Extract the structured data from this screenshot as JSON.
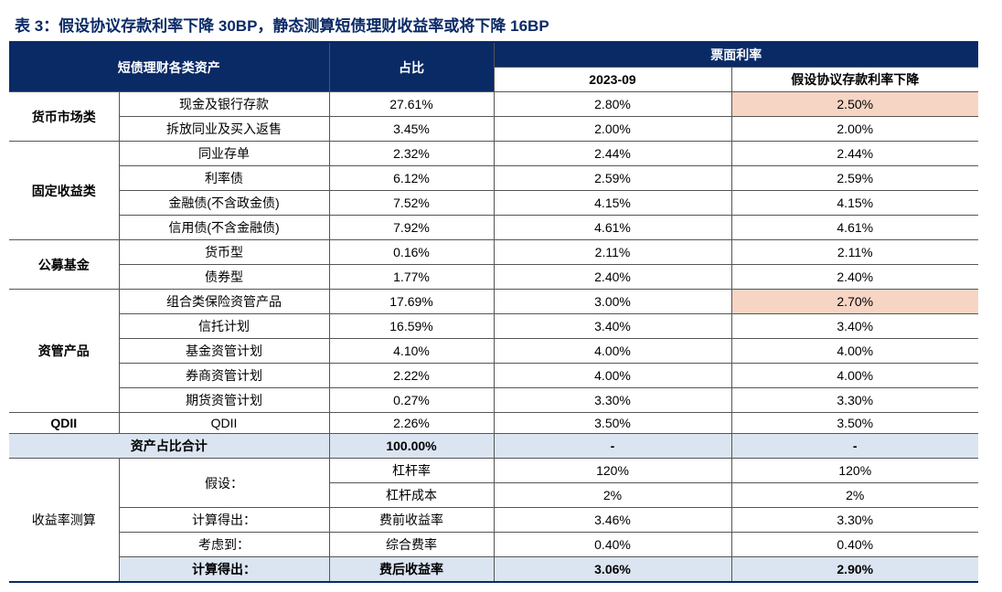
{
  "title": "表 3：假设协议存款利率下降 30BP，静态测算短债理财收益率或将下降 16BP",
  "headers": {
    "assets": "短债理财各类资产",
    "ratio": "占比",
    "coupon": "票面利率",
    "date": "2023-09",
    "scenario": "假设协议存款利率下降"
  },
  "colors": {
    "header_bg": "#0a2a66",
    "header_fg": "#ffffff",
    "highlight_bg": "#f7d5c4",
    "band_bg": "#dbe5f1",
    "title_color": "#0a2a66",
    "border_color": "#555555"
  },
  "groups": [
    {
      "name": "货币市场类",
      "rows": [
        {
          "asset": "现金及银行存款",
          "ratio": "27.61%",
          "v09": "2.80%",
          "vsc": "2.50%",
          "hl": true
        },
        {
          "asset": "拆放同业及买入返售",
          "ratio": "3.45%",
          "v09": "2.00%",
          "vsc": "2.00%"
        }
      ]
    },
    {
      "name": "固定收益类",
      "rows": [
        {
          "asset": "同业存单",
          "ratio": "2.32%",
          "v09": "2.44%",
          "vsc": "2.44%"
        },
        {
          "asset": "利率债",
          "ratio": "6.12%",
          "v09": "2.59%",
          "vsc": "2.59%"
        },
        {
          "asset": "金融债(不含政金债)",
          "ratio": "7.52%",
          "v09": "4.15%",
          "vsc": "4.15%"
        },
        {
          "asset": "信用债(不含金融债)",
          "ratio": "7.92%",
          "v09": "4.61%",
          "vsc": "4.61%"
        }
      ]
    },
    {
      "name": "公募基金",
      "rows": [
        {
          "asset": "货币型",
          "ratio": "0.16%",
          "v09": "2.11%",
          "vsc": "2.11%"
        },
        {
          "asset": "债券型",
          "ratio": "1.77%",
          "v09": "2.40%",
          "vsc": "2.40%"
        }
      ]
    },
    {
      "name": "资管产品",
      "rows": [
        {
          "asset": "组合类保险资管产品",
          "ratio": "17.69%",
          "v09": "3.00%",
          "vsc": "2.70%",
          "hl": true
        },
        {
          "asset": "信托计划",
          "ratio": "16.59%",
          "v09": "3.40%",
          "vsc": "3.40%"
        },
        {
          "asset": "基金资管计划",
          "ratio": "4.10%",
          "v09": "4.00%",
          "vsc": "4.00%"
        },
        {
          "asset": "券商资管计划",
          "ratio": "2.22%",
          "v09": "4.00%",
          "vsc": "4.00%"
        },
        {
          "asset": "期货资管计划",
          "ratio": "0.27%",
          "v09": "3.30%",
          "vsc": "3.30%"
        }
      ]
    },
    {
      "name": "QDII",
      "rows": [
        {
          "asset": "QDII",
          "ratio": "2.26%",
          "v09": "3.50%",
          "vsc": "3.50%"
        }
      ]
    }
  ],
  "total": {
    "label": "资产占比合计",
    "ratio": "100.00%",
    "v09": "-",
    "vsc": "-"
  },
  "calc": {
    "section": "收益率测算",
    "assume_label": "假设：",
    "rows": [
      {
        "left": "假设：",
        "item": "杠杆率",
        "v09": "120%",
        "vsc": "120%",
        "merge": "start"
      },
      {
        "left": "",
        "item": "杠杆成本",
        "v09": "2%",
        "vsc": "2%",
        "merge": "cont"
      },
      {
        "left": "计算得出：",
        "item": "费前收益率",
        "v09": "3.46%",
        "vsc": "3.30%"
      },
      {
        "left": "考虑到：",
        "item": "综合费率",
        "v09": "0.40%",
        "vsc": "0.40%"
      }
    ],
    "final": {
      "left": "计算得出：",
      "item": "费后收益率",
      "v09": "3.06%",
      "vsc": "2.90%"
    }
  }
}
